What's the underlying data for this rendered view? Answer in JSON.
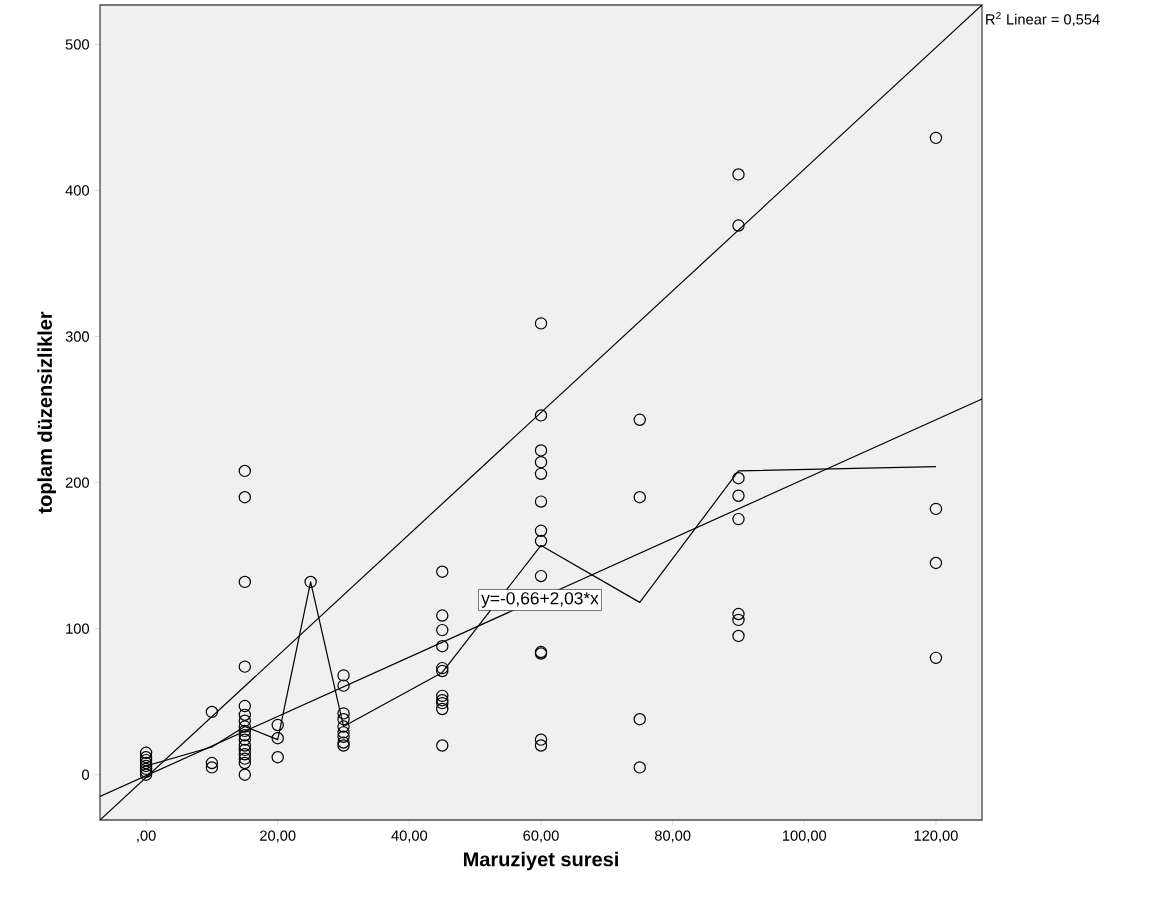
{
  "chart_data": {
    "type": "scatter",
    "xlabel": "Maruziyet suresi",
    "ylabel": "toplam düzensizlikler",
    "annotations": [
      "R$^{2}$ Linear = 0,554",
      "y=-0,66+2,03*x"
    ],
    "xlim": [
      -7,
      127
    ],
    "ylim": [
      -31,
      527
    ],
    "xticks": [
      {
        "value": 0,
        "label": ",00"
      },
      {
        "value": 20,
        "label": "20,00"
      },
      {
        "value": 40,
        "label": "40,00"
      },
      {
        "value": 60,
        "label": "60,00"
      },
      {
        "value": 80,
        "label": "80,00"
      },
      {
        "value": 100,
        "label": "100,00"
      },
      {
        "value": 120,
        "label": "120,00"
      }
    ],
    "yticks": [
      0,
      100,
      200,
      300,
      400,
      500
    ],
    "grid": false,
    "series": [
      {
        "marker": "circle",
        "color": "#000000",
        "x": [
          0,
          0,
          0,
          0,
          0,
          0,
          0,
          0,
          10,
          10,
          10,
          15,
          15,
          15,
          15,
          15,
          15,
          15,
          15,
          15,
          15,
          15,
          15,
          15,
          15,
          15,
          15,
          15,
          20,
          20,
          20,
          25,
          30,
          30,
          30,
          30,
          30,
          30,
          30,
          30,
          30,
          45,
          45,
          45,
          45,
          45,
          45,
          45,
          45,
          45,
          45,
          45,
          60,
          60,
          60,
          60,
          60,
          60,
          60,
          60,
          60,
          60,
          60,
          60,
          60,
          75,
          75,
          75,
          75,
          90,
          90,
          90,
          90,
          90,
          90,
          90,
          90,
          120,
          120,
          120,
          120
        ],
        "values": [
          0,
          2,
          4,
          6,
          8,
          10,
          12,
          15,
          43,
          8,
          5,
          208,
          190,
          132,
          74,
          47,
          41,
          37,
          33,
          30,
          27,
          24,
          20,
          17,
          14,
          11,
          8,
          0,
          34,
          25,
          12,
          132,
          68,
          61,
          42,
          38,
          33,
          29,
          26,
          22,
          20,
          139,
          109,
          99,
          88,
          73,
          71,
          54,
          51,
          49,
          45,
          20,
          309,
          246,
          222,
          214,
          206,
          187,
          167,
          160,
          136,
          84,
          83,
          24,
          20,
          243,
          190,
          38,
          5,
          411,
          376,
          203,
          191,
          175,
          110,
          106,
          95,
          436,
          182,
          145,
          80
        ]
      },
      {
        "type": "line",
        "marker": "none",
        "color": "#000000",
        "x": [
          -7,
          127
        ],
        "values": [
          -14.9,
          257.2
        ]
      },
      {
        "type": "line",
        "marker": "none",
        "color": "#000000",
        "x": [
          0,
          10,
          15,
          20,
          25,
          30,
          45,
          60,
          75,
          90,
          120
        ],
        "values": [
          6,
          19,
          33,
          24,
          132,
          33,
          70,
          157,
          118,
          208,
          211
        ]
      },
      {
        "type": "line",
        "marker": "none",
        "color": "#000000",
        "x": [
          -7,
          127
        ],
        "values": [
          -31,
          527
        ]
      }
    ]
  }
}
